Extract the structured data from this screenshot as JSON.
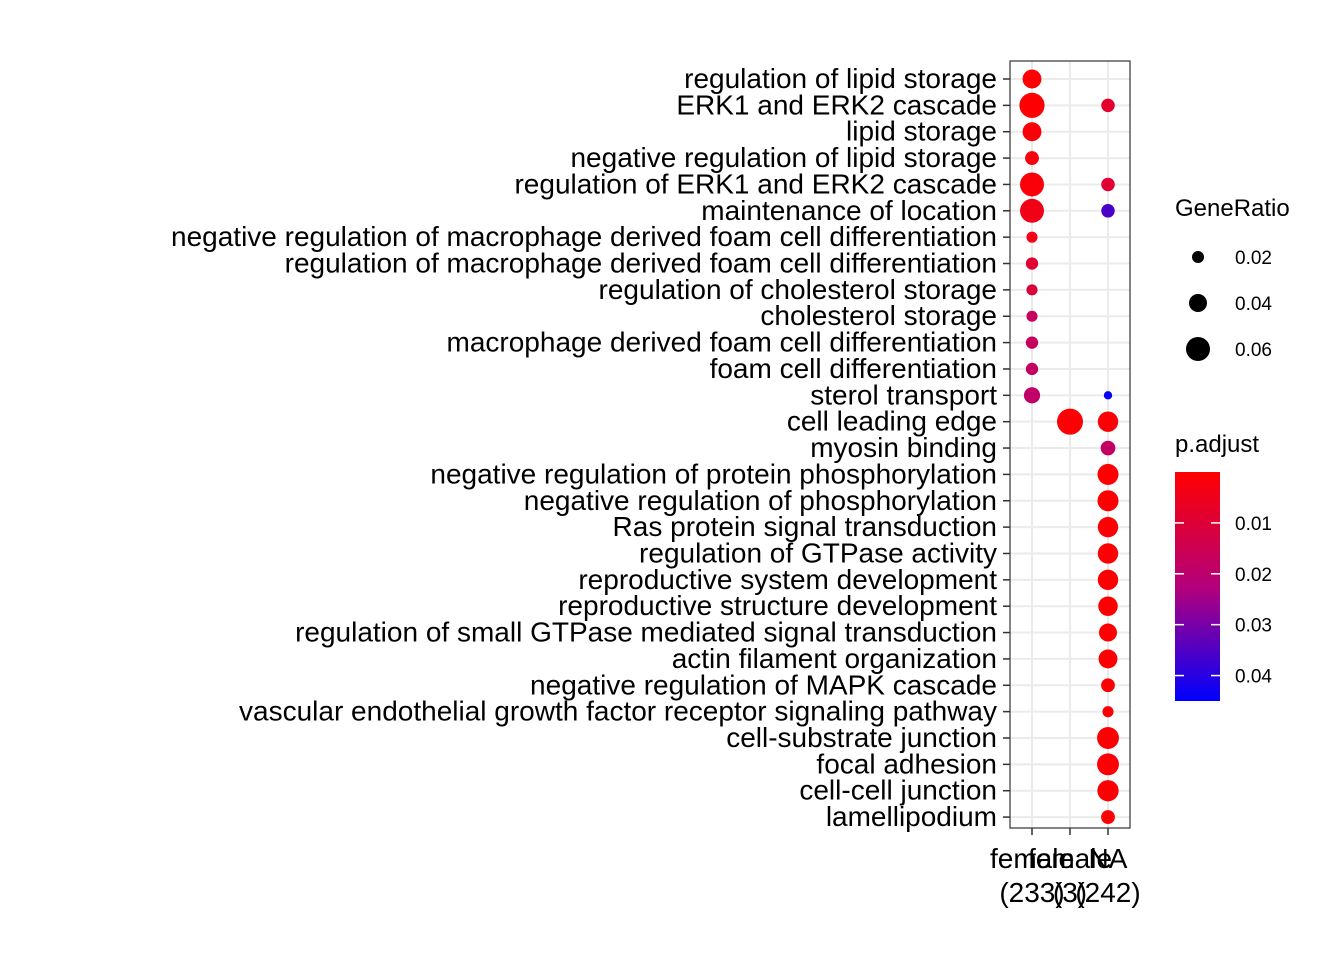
{
  "chart_data": {
    "type": "scatter",
    "title": "",
    "xlabel": "",
    "ylabel": "",
    "x_categories": [
      {
        "line1": "female",
        "line2": "(233)"
      },
      {
        "line1": "female",
        "line2": "(3)"
      },
      {
        "line1": "NA",
        "line2": "(242)"
      }
    ],
    "y_categories": [
      "regulation of lipid storage",
      "ERK1 and ERK2 cascade",
      "lipid storage",
      "negative regulation of lipid storage",
      "regulation of ERK1 and ERK2 cascade",
      "maintenance of location",
      "negative regulation of macrophage derived foam cell differentiation",
      "regulation of macrophage derived foam cell differentiation",
      "regulation of cholesterol storage",
      "cholesterol storage",
      "macrophage derived foam cell differentiation",
      "foam cell differentiation",
      "sterol transport",
      "cell leading edge",
      "myosin binding",
      "negative regulation of protein phosphorylation",
      "negative regulation of phosphorylation",
      "Ras protein signal transduction",
      "regulation of GTPase activity",
      "reproductive system development",
      "reproductive structure development",
      "regulation of small GTPase mediated signal transduction",
      "actin filament organization",
      "negative regulation of MAPK cascade",
      "vascular endothelial growth factor receptor signaling pathway",
      "cell-substrate junction",
      "focal adhesion",
      "cell-cell junction",
      "lamellipodium"
    ],
    "points": [
      {
        "x": 0,
        "y": 0,
        "generatio": 0.043,
        "padjust": 0.0005
      },
      {
        "x": 0,
        "y": 1,
        "generatio": 0.064,
        "padjust": 0.0005
      },
      {
        "x": 2,
        "y": 1,
        "generatio": 0.025,
        "padjust": 0.008
      },
      {
        "x": 0,
        "y": 2,
        "generatio": 0.043,
        "padjust": 0.0015
      },
      {
        "x": 0,
        "y": 3,
        "generatio": 0.026,
        "padjust": 0.002
      },
      {
        "x": 0,
        "y": 4,
        "generatio": 0.06,
        "padjust": 0.0015
      },
      {
        "x": 2,
        "y": 4,
        "generatio": 0.025,
        "padjust": 0.009
      },
      {
        "x": 0,
        "y": 5,
        "generatio": 0.06,
        "padjust": 0.004
      },
      {
        "x": 2,
        "y": 5,
        "generatio": 0.025,
        "padjust": 0.036
      },
      {
        "x": 0,
        "y": 6,
        "generatio": 0.017,
        "padjust": 0.004
      },
      {
        "x": 0,
        "y": 7,
        "generatio": 0.021,
        "padjust": 0.009
      },
      {
        "x": 0,
        "y": 8,
        "generatio": 0.017,
        "padjust": 0.011
      },
      {
        "x": 0,
        "y": 9,
        "generatio": 0.017,
        "padjust": 0.017
      },
      {
        "x": 0,
        "y": 10,
        "generatio": 0.021,
        "padjust": 0.017
      },
      {
        "x": 0,
        "y": 11,
        "generatio": 0.021,
        "padjust": 0.018
      },
      {
        "x": 0,
        "y": 12,
        "generatio": 0.034,
        "padjust": 0.019
      },
      {
        "x": 2,
        "y": 12,
        "generatio": 0.008,
        "padjust": 0.044
      },
      {
        "x": 1,
        "y": 13,
        "generatio": 0.0667,
        "padjust": 0.0005
      },
      {
        "x": 2,
        "y": 13,
        "generatio": 0.048,
        "padjust": 0.001
      },
      {
        "x": 2,
        "y": 14,
        "generatio": 0.029,
        "padjust": 0.018
      },
      {
        "x": 2,
        "y": 15,
        "generatio": 0.05,
        "padjust": 0.0003
      },
      {
        "x": 2,
        "y": 16,
        "generatio": 0.05,
        "padjust": 0.0003
      },
      {
        "x": 2,
        "y": 17,
        "generatio": 0.048,
        "padjust": 0.0003
      },
      {
        "x": 2,
        "y": 18,
        "generatio": 0.048,
        "padjust": 0.0003
      },
      {
        "x": 2,
        "y": 19,
        "generatio": 0.048,
        "padjust": 0.0003
      },
      {
        "x": 2,
        "y": 20,
        "generatio": 0.045,
        "padjust": 0.0003
      },
      {
        "x": 2,
        "y": 21,
        "generatio": 0.04,
        "padjust": 0.0003
      },
      {
        "x": 2,
        "y": 22,
        "generatio": 0.043,
        "padjust": 0.0003
      },
      {
        "x": 2,
        "y": 23,
        "generatio": 0.026,
        "padjust": 0.0005
      },
      {
        "x": 2,
        "y": 24,
        "generatio": 0.017,
        "padjust": 0.0005
      },
      {
        "x": 2,
        "y": 25,
        "generatio": 0.053,
        "padjust": 0.0003
      },
      {
        "x": 2,
        "y": 26,
        "generatio": 0.053,
        "padjust": 0.0003
      },
      {
        "x": 2,
        "y": 27,
        "generatio": 0.051,
        "padjust": 0.0003
      },
      {
        "x": 2,
        "y": 28,
        "generatio": 0.026,
        "padjust": 0.0005
      }
    ],
    "size_legend": {
      "title": "GeneRatio",
      "values": [
        0.02,
        0.04,
        0.06
      ],
      "labels": [
        "0.02",
        "0.04",
        "0.06"
      ]
    },
    "color_legend": {
      "title": "p.adjust",
      "min": 0.0,
      "max": 0.045,
      "low_color": "#ff0000",
      "high_color": "#0000ff",
      "ticks": [
        0.01,
        0.02,
        0.03,
        0.04
      ],
      "tick_labels": [
        "0.01",
        "0.02",
        "0.03",
        "0.04"
      ]
    },
    "grid": true,
    "legend_position": "right"
  }
}
